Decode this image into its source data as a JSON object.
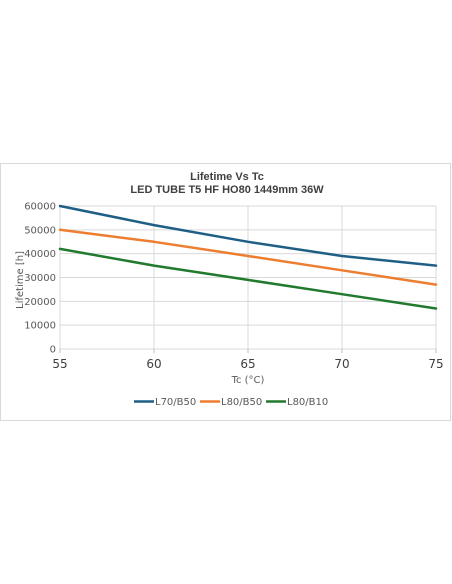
{
  "chart_data": {
    "type": "line",
    "title": "Lifetime Vs Tc",
    "subtitle": "LED TUBE T5 HF HO80 1449mm 36W",
    "xlabel": "Tc (°C)",
    "ylabel": "Lifetime  [h]",
    "x": [
      55,
      60,
      65,
      70,
      75
    ],
    "xlim": [
      55,
      75
    ],
    "ylim": [
      0,
      60000
    ],
    "yticks": [
      0,
      10000,
      20000,
      30000,
      40000,
      50000,
      60000
    ],
    "grid": true,
    "legend_position": "bottom",
    "series": [
      {
        "name": "L70/B50",
        "color": "#1f5f86",
        "values": [
          60000,
          52000,
          45000,
          39000,
          35000
        ]
      },
      {
        "name": "L80/B50",
        "color": "#ed7d31",
        "values": [
          50000,
          45000,
          39000,
          33000,
          27000
        ]
      },
      {
        "name": "L80/B10",
        "color": "#217a2e",
        "values": [
          42000,
          35000,
          29000,
          23000,
          17000
        ]
      }
    ]
  }
}
